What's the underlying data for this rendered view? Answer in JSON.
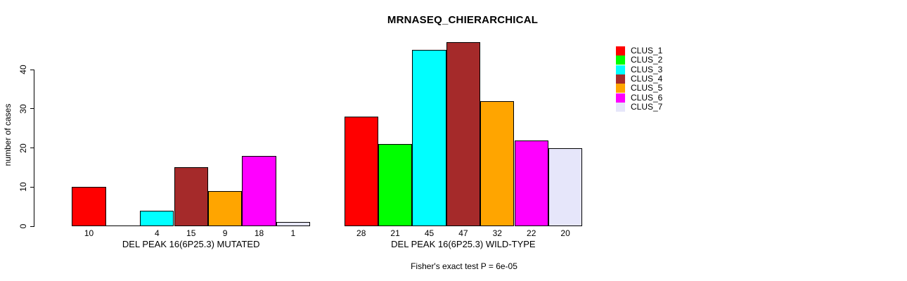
{
  "title": "MRNASEQ_CHIERARCHICAL",
  "y_axis": {
    "label": "number of cases",
    "ticks": [
      "0",
      "10",
      "20",
      "30",
      "40"
    ]
  },
  "legend": {
    "items": [
      {
        "label": "CLUS_1",
        "color": "#FF0000"
      },
      {
        "label": "CLUS_2",
        "color": "#00FF00"
      },
      {
        "label": "CLUS_3",
        "color": "#00FFFF"
      },
      {
        "label": "CLUS_4",
        "color": "#A52A2A"
      },
      {
        "label": "CLUS_5",
        "color": "#FFA500"
      },
      {
        "label": "CLUS_6",
        "color": "#FF00FF"
      },
      {
        "label": "CLUS_7",
        "color": "#E6E6FA"
      }
    ]
  },
  "footer": "Fisher's exact test P = 6e-05",
  "chart_data": {
    "type": "bar",
    "title": "MRNASEQ_CHIERARCHICAL",
    "ylabel": "number of cases",
    "ylim": [
      0,
      47
    ],
    "yticks": [
      0,
      10,
      20,
      30,
      40
    ],
    "grid": false,
    "legend_position": "top-right",
    "categories": [
      "DEL PEAK 16(6P25.3) MUTATED",
      "DEL PEAK 16(6P25.3) WILD-TYPE"
    ],
    "series": [
      {
        "name": "CLUS_1",
        "color": "#FF0000",
        "values": [
          10,
          28
        ]
      },
      {
        "name": "CLUS_2",
        "color": "#00FF00",
        "values": [
          0,
          21
        ]
      },
      {
        "name": "CLUS_3",
        "color": "#00FFFF",
        "values": [
          4,
          45
        ]
      },
      {
        "name": "CLUS_4",
        "color": "#A52A2A",
        "values": [
          15,
          47
        ]
      },
      {
        "name": "CLUS_5",
        "color": "#FFA500",
        "values": [
          9,
          32
        ]
      },
      {
        "name": "CLUS_6",
        "color": "#FF00FF",
        "values": [
          18,
          22
        ]
      },
      {
        "name": "CLUS_7",
        "color": "#E6E6FA",
        "values": [
          1,
          20
        ]
      }
    ],
    "bar_value_labels": [
      [
        "10",
        "",
        "4",
        "15",
        "9",
        "18",
        "1"
      ],
      [
        "28",
        "21",
        "45",
        "47",
        "32",
        "22",
        "20"
      ]
    ],
    "annotation": "Fisher's exact test P = 6e-05"
  }
}
